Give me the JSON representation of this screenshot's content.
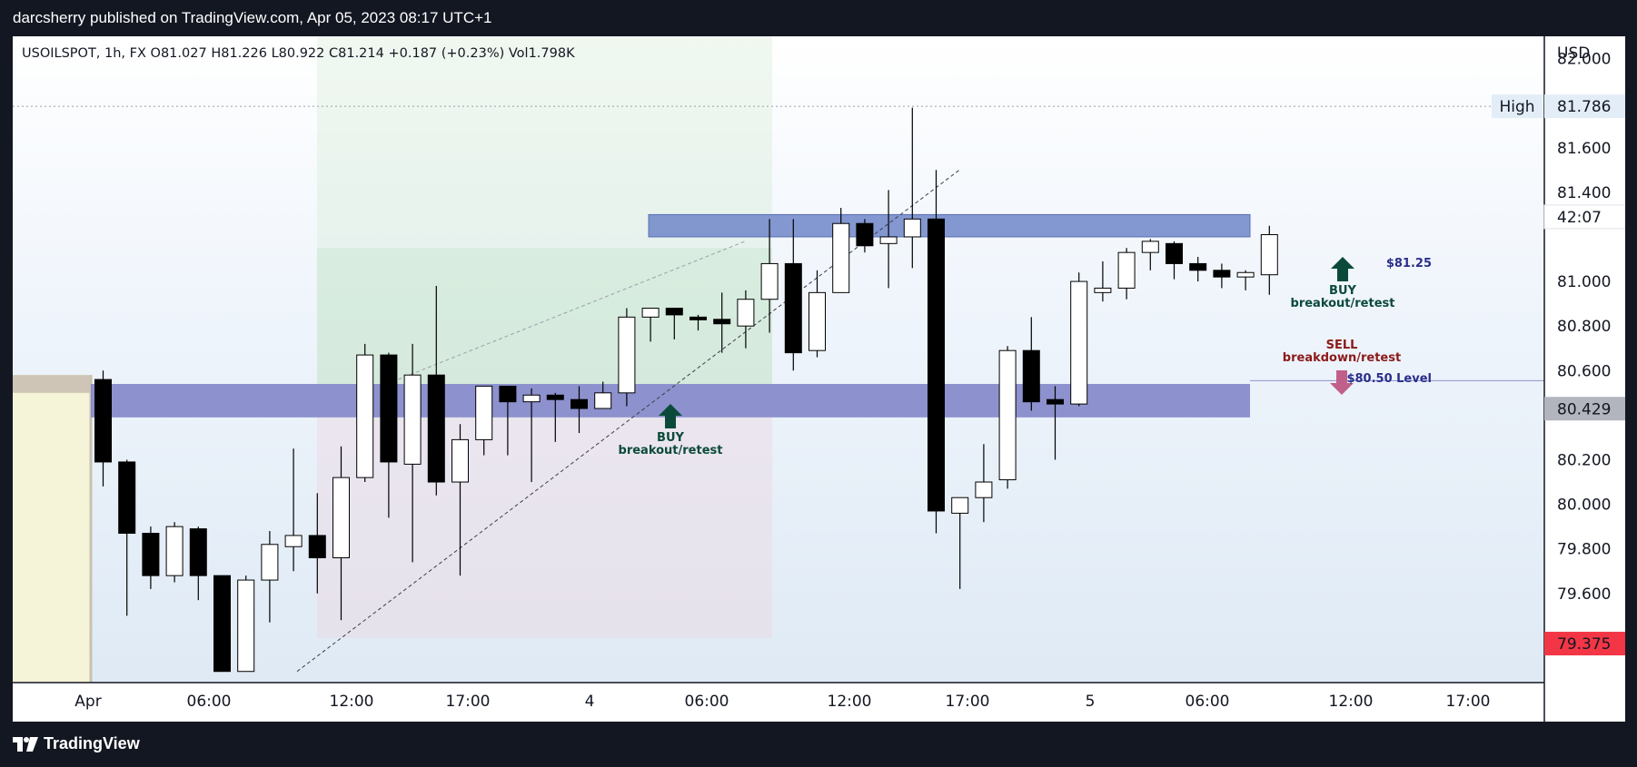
{
  "header": {
    "publisher_line": "darcsherry published on TradingView.com, Apr 05, 2023 08:17 UTC+1"
  },
  "footer": {
    "brand": "TradingView"
  },
  "legend": {
    "symbol": "USOILSPOT, 1h, FX",
    "open": "O81.027",
    "high": "H81.226",
    "low": "L80.922",
    "close": "C81.214",
    "change": "+0.187 (+0.23%)",
    "volume": "Vol1.798K"
  },
  "colors": {
    "up_body": "#ffffff",
    "down_body": "#000000",
    "zone_upper": "#6f86c8",
    "zone_lower": "#8083c6",
    "buy_arrow": "#0b4a3b",
    "sell_arrow": "#c0608a",
    "sell_text": "#8b1a1a",
    "level_text": "#2a2e8a",
    "last_price_bg": "#f23645",
    "current_price_bg": "#b2b5be"
  },
  "chart_data": {
    "type": "candlestick",
    "symbol": "USOILSPOT",
    "interval": "1h",
    "currency": "USD",
    "ylim": [
      79.2,
      82.1
    ],
    "y_ticks": [
      "82.000",
      "81.600",
      "81.400",
      "81.000",
      "80.800",
      "80.600",
      "80.200",
      "80.000",
      "79.800",
      "79.600"
    ],
    "x_ticks": [
      "Apr",
      "06:00",
      "12:00",
      "17:00",
      "4",
      "06:00",
      "12:00",
      "17:00",
      "5",
      "06:00",
      "12:00",
      "17:00"
    ],
    "price_tags": {
      "high_label": "High",
      "high_value": "81.786",
      "countdown": "42:07",
      "current_value": "80.429",
      "last_value": "79.375"
    },
    "candles": [
      {
        "o": 80.56,
        "h": 80.6,
        "l": 80.08,
        "c": 80.19
      },
      {
        "o": 80.19,
        "h": 80.2,
        "l": 79.5,
        "c": 79.87
      },
      {
        "o": 79.87,
        "h": 79.9,
        "l": 79.62,
        "c": 79.68
      },
      {
        "o": 79.68,
        "h": 79.92,
        "l": 79.65,
        "c": 79.9
      },
      {
        "o": 79.89,
        "h": 79.9,
        "l": 79.57,
        "c": 79.68
      },
      {
        "o": 79.68,
        "h": 79.68,
        "l": 79.25,
        "c": 79.25
      },
      {
        "o": 79.25,
        "h": 79.68,
        "l": 79.25,
        "c": 79.66
      },
      {
        "o": 79.66,
        "h": 79.88,
        "l": 79.47,
        "c": 79.82
      },
      {
        "o": 79.81,
        "h": 80.25,
        "l": 79.7,
        "c": 79.86
      },
      {
        "o": 79.86,
        "h": 80.05,
        "l": 79.6,
        "c": 79.76
      },
      {
        "o": 79.76,
        "h": 80.26,
        "l": 79.48,
        "c": 80.12
      },
      {
        "o": 80.12,
        "h": 80.72,
        "l": 80.1,
        "c": 80.67
      },
      {
        "o": 80.67,
        "h": 80.68,
        "l": 79.94,
        "c": 80.19
      },
      {
        "o": 80.18,
        "h": 80.72,
        "l": 79.74,
        "c": 80.58
      },
      {
        "o": 80.58,
        "h": 80.98,
        "l": 80.04,
        "c": 80.1
      },
      {
        "o": 80.1,
        "h": 80.36,
        "l": 79.68,
        "c": 80.29
      },
      {
        "o": 80.29,
        "h": 80.52,
        "l": 80.22,
        "c": 80.53
      },
      {
        "o": 80.53,
        "h": 80.53,
        "l": 80.22,
        "c": 80.46
      },
      {
        "o": 80.46,
        "h": 80.52,
        "l": 80.1,
        "c": 80.49
      },
      {
        "o": 80.49,
        "h": 80.5,
        "l": 80.28,
        "c": 80.47
      },
      {
        "o": 80.47,
        "h": 80.53,
        "l": 80.32,
        "c": 80.43
      },
      {
        "o": 80.43,
        "h": 80.55,
        "l": 80.43,
        "c": 80.5
      },
      {
        "o": 80.5,
        "h": 80.88,
        "l": 80.44,
        "c": 80.84
      },
      {
        "o": 80.84,
        "h": 80.86,
        "l": 80.73,
        "c": 80.88
      },
      {
        "o": 80.88,
        "h": 80.88,
        "l": 80.74,
        "c": 80.85
      },
      {
        "o": 80.84,
        "h": 80.85,
        "l": 80.78,
        "c": 80.83
      },
      {
        "o": 80.83,
        "h": 80.95,
        "l": 80.68,
        "c": 80.81
      },
      {
        "o": 80.8,
        "h": 80.96,
        "l": 80.7,
        "c": 80.92
      },
      {
        "o": 80.92,
        "h": 81.28,
        "l": 80.77,
        "c": 81.08
      },
      {
        "o": 81.08,
        "h": 81.28,
        "l": 80.6,
        "c": 80.68
      },
      {
        "o": 80.69,
        "h": 81.05,
        "l": 80.66,
        "c": 80.95
      },
      {
        "o": 80.95,
        "h": 81.33,
        "l": 80.95,
        "c": 81.26
      },
      {
        "o": 81.26,
        "h": 81.28,
        "l": 81.13,
        "c": 81.16
      },
      {
        "o": 81.17,
        "h": 81.41,
        "l": 80.97,
        "c": 81.2
      },
      {
        "o": 81.2,
        "h": 81.78,
        "l": 81.06,
        "c": 81.28
      },
      {
        "o": 81.28,
        "h": 81.5,
        "l": 79.87,
        "c": 79.97
      },
      {
        "o": 79.96,
        "h": 80.01,
        "l": 79.62,
        "c": 80.03
      },
      {
        "o": 80.03,
        "h": 80.27,
        "l": 79.92,
        "c": 80.1
      },
      {
        "o": 80.11,
        "h": 80.71,
        "l": 80.07,
        "c": 80.69
      },
      {
        "o": 80.69,
        "h": 80.84,
        "l": 80.42,
        "c": 80.46
      },
      {
        "o": 80.47,
        "h": 80.53,
        "l": 80.2,
        "c": 80.45
      },
      {
        "o": 80.45,
        "h": 81.04,
        "l": 80.44,
        "c": 81.0
      },
      {
        "o": 80.95,
        "h": 81.09,
        "l": 80.91,
        "c": 80.97
      },
      {
        "o": 80.97,
        "h": 81.15,
        "l": 80.92,
        "c": 81.13
      },
      {
        "o": 81.13,
        "h": 81.19,
        "l": 81.05,
        "c": 81.18
      },
      {
        "o": 81.17,
        "h": 81.18,
        "l": 81.01,
        "c": 81.08
      },
      {
        "o": 81.08,
        "h": 81.11,
        "l": 81.0,
        "c": 81.05
      },
      {
        "o": 81.05,
        "h": 81.08,
        "l": 80.97,
        "c": 81.02
      },
      {
        "o": 81.02,
        "h": 81.05,
        "l": 80.96,
        "c": 81.04
      },
      {
        "o": 81.03,
        "h": 81.25,
        "l": 80.94,
        "c": 81.21
      }
    ],
    "zones": [
      {
        "name": "upper-resistance",
        "from": 81.2,
        "to": 81.3
      },
      {
        "name": "lower-level",
        "from": 80.39,
        "to": 80.54
      }
    ],
    "annotations": {
      "upper_level": "$81.25",
      "lower_level": "$80.50 Level",
      "buy_title": "BUY",
      "buy_sub": "breakout/retest",
      "buy2_title": "BUY",
      "buy2_sub": "breakout/retest",
      "sell_title": "SELL",
      "sell_sub": "breakdown/retest"
    }
  }
}
